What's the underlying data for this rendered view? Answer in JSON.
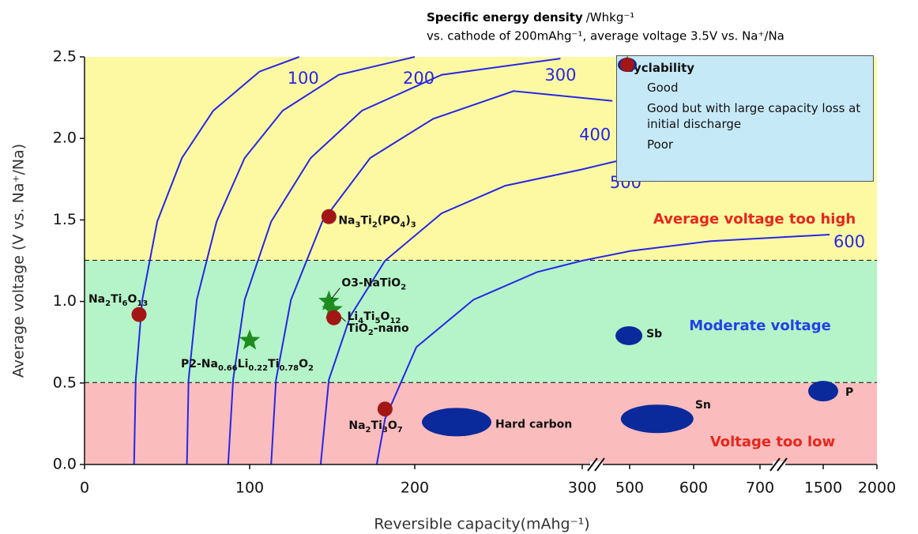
{
  "chart_data": {
    "type": "scatter",
    "title": "Specific energy density",
    "title_unit": "/Whkg⁻¹",
    "subtitle": "vs. cathode of 200mAhg⁻¹, average voltage 3.5V vs. Na⁺/Na",
    "x_label": "Reversible capacity(mAhg⁻¹)",
    "y_label": "Average voltage (V vs. Na⁺/Na)",
    "xlim": [
      0,
      2000
    ],
    "ylim": [
      0,
      2.5
    ],
    "xticks": [
      0,
      100,
      200,
      300,
      500,
      600,
      700,
      1500,
      2000
    ],
    "xbreaks": [
      300,
      700
    ],
    "yticks": [
      {
        "value": 0,
        "label": "0.0"
      },
      0.5,
      {
        "value": 1,
        "label": "1.0"
      },
      1.5,
      {
        "value": 2,
        "label": "2.0"
      },
      2.5
    ],
    "regions": [
      {
        "label": "Average voltage too high",
        "from": 1.25,
        "to": 2.5,
        "color": "#fdf9a3",
        "label_color": "#e8261c"
      },
      {
        "label": "Moderate voltage",
        "from": 0.5,
        "to": 1.25,
        "color": "#b4f4c8",
        "label_color": "#2340e8"
      },
      {
        "label": "Voltage too low",
        "from": 0,
        "to": 0.5,
        "color": "#fbbcbd",
        "label_color": "#e8261c"
      }
    ],
    "curve_color": "#2626e6",
    "energy_curves": [
      {
        "name": "100",
        "x": [
          30,
          31,
          35,
          44,
          59,
          78,
          106,
          130
        ],
        "values": [
          0,
          0.52,
          1.01,
          1.49,
          1.88,
          2.17,
          2.41,
          2.5
        ]
      },
      {
        "name": "200",
        "x": [
          62,
          63,
          68,
          80,
          97,
          120,
          154,
          200
        ],
        "values": [
          0,
          0.52,
          1.01,
          1.49,
          1.88,
          2.17,
          2.39,
          2.5
        ]
      },
      {
        "name": "300",
        "x": [
          87,
          90,
          97,
          113,
          137,
          168,
          216,
          287
        ],
        "values": [
          0,
          0.52,
          1.01,
          1.49,
          1.88,
          2.17,
          2.39,
          2.49
        ]
      },
      {
        "name": "400",
        "x": [
          113,
          116,
          125,
          144,
          173,
          211,
          259,
          427
        ],
        "values": [
          0,
          0.52,
          1.01,
          1.49,
          1.88,
          2.12,
          2.29,
          2.23
        ]
      },
      {
        "name": "500",
        "x": [
          143,
          148,
          161,
          182,
          216,
          254,
          300,
          443
        ],
        "values": [
          0,
          0.52,
          0.91,
          1.25,
          1.54,
          1.71,
          1.81,
          1.86
        ]
      },
      {
        "name": "600",
        "x": [
          177,
          182,
          201,
          235,
          273,
          300,
          502,
          626,
          1559
        ],
        "values": [
          0,
          0.28,
          0.72,
          1.01,
          1.18,
          1.25,
          1.31,
          1.37,
          1.41
        ]
      }
    ],
    "legend_title": "Cyclability",
    "series": [
      {
        "name": "Good",
        "marker": "star",
        "color": "#1f8c1f",
        "labels": [
          "O3-NaTiO2",
          "Li4Ti5O12",
          "P2-Na0.66Li0.22Ti0.78O2"
        ],
        "x": [
          148,
          150,
          100
        ],
        "values": [
          1.0,
          0.95,
          0.76
        ]
      },
      {
        "name": "Good but with large capacity loss at initial discharge",
        "marker": "ellipse",
        "color": "#0a2a9c",
        "labels": [
          "Hard carbon",
          "Sb",
          "Sn",
          "P"
        ],
        "x": [
          225,
          497,
          543,
          1500
        ],
        "values": [
          0.26,
          0.79,
          0.28,
          0.45
        ]
      },
      {
        "name": "Poor",
        "marker": "circle",
        "color": "#a31616",
        "labels": [
          "Na2Ti6O13",
          "Na3Ti2(PO4)3",
          "TiO2-nano",
          "Na2Ti3O7"
        ],
        "x": [
          33,
          148,
          151,
          182
        ],
        "values": [
          0.92,
          1.52,
          0.9,
          0.34
        ]
      }
    ]
  }
}
